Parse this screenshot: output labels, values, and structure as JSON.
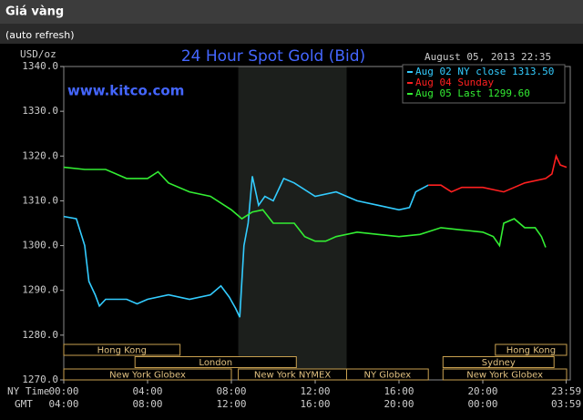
{
  "header": {
    "title": "Giá vàng",
    "subtitle": "(auto refresh)"
  },
  "chart_data": {
    "type": "line",
    "title": "24 Hour Spot Gold (Bid)",
    "watermark": "www.kitco.com",
    "timestamp": "August 05, 2013 22:35",
    "y_label": "USD/oz",
    "x_label": "NY Time",
    "x2_label": "GMT",
    "xlim": [
      0,
      24
    ],
    "ylim": [
      1270,
      1340
    ],
    "yticks": [
      {
        "value": 1340,
        "label": "1340.0"
      },
      {
        "value": 1330,
        "label": "1330.0"
      },
      {
        "value": 1320,
        "label": "1320.0"
      },
      {
        "value": 1310,
        "label": "1310.0"
      },
      {
        "value": 1300,
        "label": "1300.0"
      },
      {
        "value": 1290,
        "label": "1290.0"
      },
      {
        "value": 1280,
        "label": "1280.0"
      },
      {
        "value": 1270,
        "label": "1270.0"
      }
    ],
    "xticks": [
      {
        "value": 0,
        "label": "00:00"
      },
      {
        "value": 4,
        "label": "04:00"
      },
      {
        "value": 8,
        "label": "08:00"
      },
      {
        "value": 12,
        "label": "12:00"
      },
      {
        "value": 16,
        "label": "16:00"
      },
      {
        "value": 20,
        "label": "20:00"
      },
      {
        "value": 23.98,
        "label": "23:59"
      }
    ],
    "x2ticks": [
      {
        "value": 0,
        "label": "04:00"
      },
      {
        "value": 4,
        "label": "08:00"
      },
      {
        "value": 8,
        "label": "12:00"
      },
      {
        "value": 12,
        "label": "16:00"
      },
      {
        "value": 16,
        "label": "20:00"
      },
      {
        "value": 20,
        "label": "00:00"
      },
      {
        "value": 23.98,
        "label": "03:59"
      }
    ],
    "highlight": [
      8.33,
      13.5
    ],
    "series": [
      {
        "name": "Aug 02 NY close 1313.50",
        "color": "#33ccff",
        "x": [
          0,
          0.6,
          1,
          1.2,
          1.5,
          1.7,
          2,
          3,
          3.5,
          4,
          5,
          6,
          7,
          7.5,
          7.9,
          8.2,
          8.4,
          8.6,
          8.8,
          9,
          9.3,
          9.6,
          10,
          10.5,
          11,
          12,
          13,
          14,
          15,
          16,
          16.5,
          16.8,
          17.4
        ],
        "values": [
          1306.5,
          1306,
          1300,
          1292,
          1289,
          1286.5,
          1288,
          1288,
          1287,
          1288,
          1289,
          1288,
          1289,
          1291,
          1288.5,
          1286,
          1284,
          1300,
          1305,
          1315.5,
          1309,
          1311,
          1310,
          1315,
          1314,
          1311,
          1312,
          1310,
          1309,
          1308,
          1308.5,
          1312,
          1313.5
        ]
      },
      {
        "name": "Aug 04 Sunday",
        "color": "#ff2020",
        "x": [
          17.4,
          18,
          18.5,
          19,
          20,
          21,
          21.5,
          22,
          23,
          23.3,
          23.5,
          23.7,
          24
        ],
        "values": [
          1313.5,
          1313.5,
          1312,
          1313,
          1313,
          1312,
          1313,
          1314,
          1315,
          1316,
          1320,
          1318,
          1317.5
        ]
      },
      {
        "name": "Aug 05 Last 1299.60",
        "color": "#33ee33",
        "x": [
          0,
          1,
          2,
          3,
          4,
          4.5,
          5,
          6,
          7,
          8,
          8.5,
          9,
          9.5,
          10,
          11,
          11.5,
          12,
          12.5,
          13,
          14,
          15,
          16,
          17,
          18,
          19,
          20,
          20.5,
          20.8,
          21,
          21.5,
          22,
          22.5,
          22.8,
          23
        ],
        "values": [
          1317.5,
          1317,
          1317,
          1315,
          1315,
          1316.5,
          1314,
          1312,
          1311,
          1308,
          1306,
          1307.5,
          1308,
          1305,
          1305,
          1302,
          1301,
          1301,
          1302,
          1303,
          1302.5,
          1302,
          1302.5,
          1304,
          1303.5,
          1303,
          1302,
          1300,
          1305,
          1306,
          1304,
          1304,
          1302,
          1299.6
        ]
      }
    ],
    "session_rows": [
      [
        {
          "label": "Hong Kong",
          "start": 0,
          "end": 5.55
        },
        {
          "label": "Hong Kong",
          "start": 20.6,
          "end": 24
        }
      ],
      [
        {
          "label": "London",
          "start": 3.4,
          "end": 11.1
        },
        {
          "label": "Sydney",
          "start": 18.1,
          "end": 23.4
        }
      ],
      [
        {
          "label": "New York Globex",
          "start": 0,
          "end": 8
        },
        {
          "label": "New York NYMEX",
          "start": 8.33,
          "end": 13.5
        },
        {
          "label": "NY Globex",
          "start": 13.5,
          "end": 17.4
        },
        {
          "label": "New York Globex",
          "start": 18.1,
          "end": 24
        }
      ]
    ]
  }
}
